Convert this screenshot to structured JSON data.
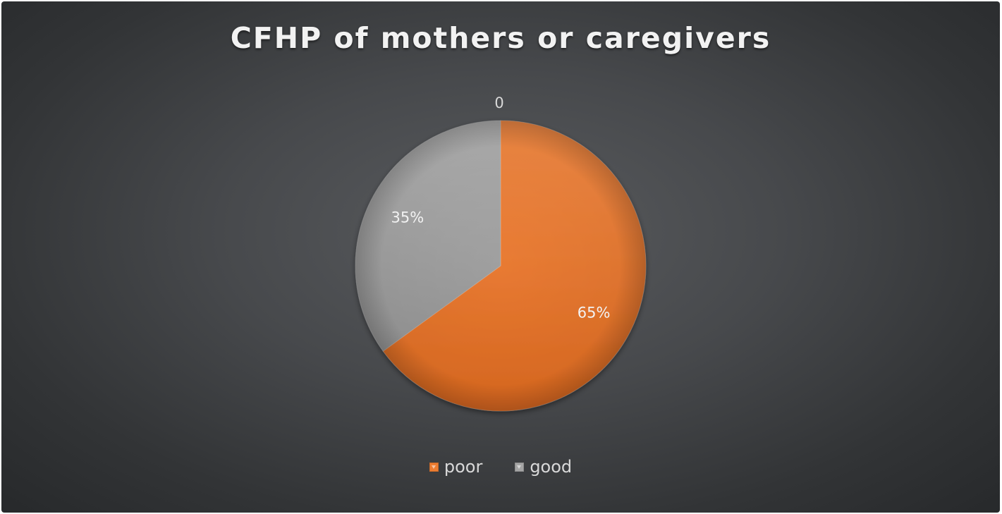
{
  "chart_data": {
    "type": "pie",
    "title": "CFHP of mothers or caregivers",
    "categories": [
      "poor",
      "good"
    ],
    "values": [
      65,
      35
    ],
    "data_labels": [
      "65%",
      "35%"
    ],
    "extra_label": "0",
    "legend_position": "bottom",
    "colors": [
      "#ed7d31",
      "#a5a5a5"
    ],
    "start_angle_deg": 0,
    "direction": "clockwise"
  }
}
